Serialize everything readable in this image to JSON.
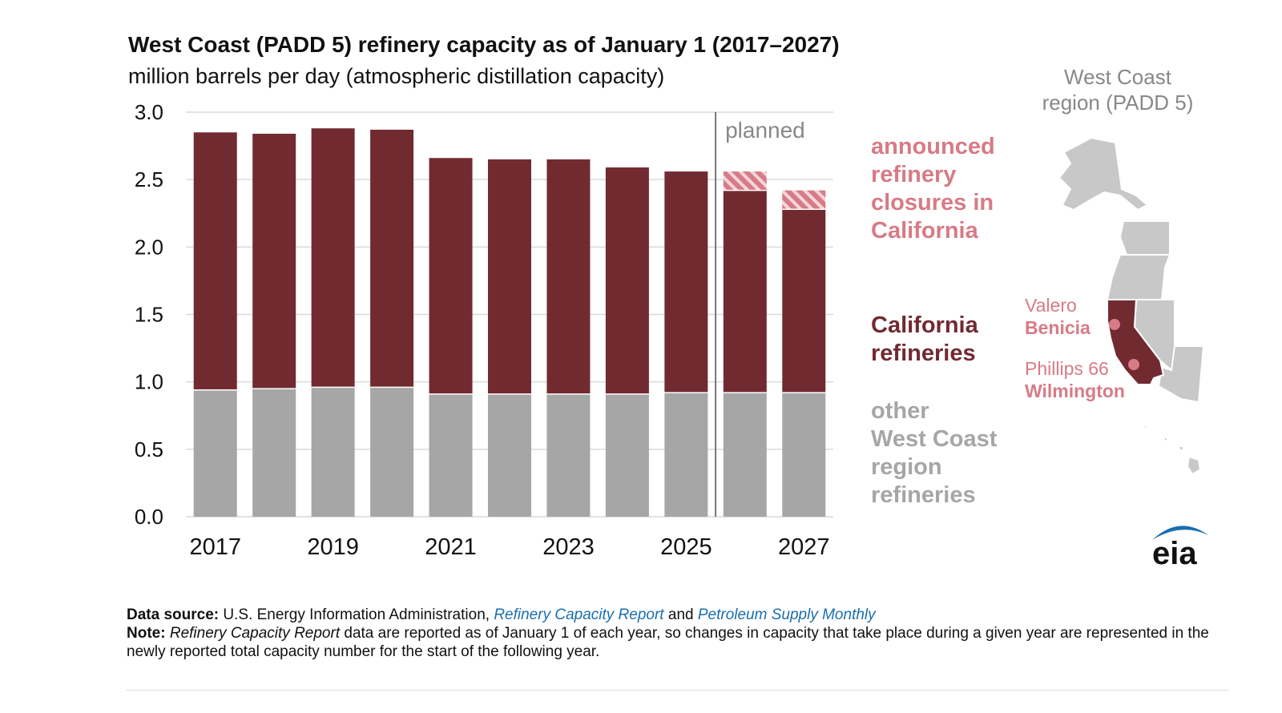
{
  "chart_data": {
    "type": "bar",
    "stacked": true,
    "title": "West Coast (PADD 5) refinery capacity as of January 1 (2017–2027)",
    "subtitle": "million barrels per day (atmospheric distillation capacity)",
    "categories": [
      "2017",
      "2018",
      "2019",
      "2020",
      "2021",
      "2022",
      "2023",
      "2024",
      "2025",
      "2026",
      "2027"
    ],
    "x_tick_labels": [
      "2017",
      "2019",
      "2021",
      "2023",
      "2025",
      "2027"
    ],
    "y_ticks": [
      "0.0",
      "0.5",
      "1.0",
      "1.5",
      "2.0",
      "2.5",
      "3.0"
    ],
    "ylim": [
      0,
      3.0
    ],
    "series": [
      {
        "name": "other West Coast region refineries",
        "color": "#a6a6a6",
        "values": [
          0.94,
          0.95,
          0.96,
          0.96,
          0.91,
          0.91,
          0.91,
          0.91,
          0.92,
          0.92,
          0.92
        ]
      },
      {
        "name": "California refineries",
        "color": "#722a31",
        "values": [
          1.91,
          1.89,
          1.92,
          1.91,
          1.75,
          1.74,
          1.74,
          1.68,
          1.64,
          1.5,
          1.36
        ]
      },
      {
        "name": "announced refinery closures in California",
        "color": "#d77b86",
        "pattern": "hatched",
        "values": [
          0,
          0,
          0,
          0,
          0,
          0,
          0,
          0,
          0,
          0.14,
          0.14
        ]
      }
    ],
    "annotation": {
      "label": "planned",
      "after_category": "2025"
    }
  },
  "legend": {
    "closures": "announced\nrefinery\nclosures in\nCalifornia",
    "california": "California\nrefineries",
    "other": "other\nWest Coast\nregion\nrefineries"
  },
  "map": {
    "title": "West Coast\nregion (PADD 5)",
    "valero_name": "Valero",
    "valero_site": "Benicia",
    "phillips_name": "Phillips 66",
    "phillips_site": "Wilmington"
  },
  "footer": {
    "source_label": "Data source:",
    "source_text": "U.S. Energy Information Administration,",
    "source_link1": "Refinery Capacity Report",
    "source_and": "and",
    "source_link2": "Petroleum Supply Monthly",
    "note_label": "Note:",
    "note_italic": "Refinery Capacity Report",
    "note_text": "data are reported as of January 1 of each year, so changes in capacity that take place during a given year are represented in the newly reported total capacity number for the start of the following year."
  },
  "logo_text": "eia",
  "colors": {
    "other": "#a6a6a6",
    "california": "#722a31",
    "closures": "#d77b86",
    "map_gray": "#c8c8c8",
    "link": "#1a6fb0"
  }
}
